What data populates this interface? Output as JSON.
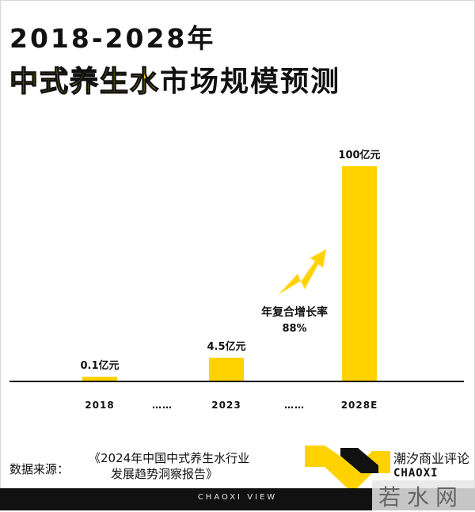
{
  "header": {
    "title_line1": "2018-2028年",
    "title_line2_accent": "中式养生水",
    "title_line2_rest": "市场规模预测"
  },
  "chart_data": {
    "type": "bar",
    "categories": [
      "2018",
      "……",
      "2023",
      "……",
      "2028E"
    ],
    "values": [
      0.1,
      null,
      4.5,
      null,
      100
    ],
    "data_labels": [
      "0.1亿元",
      "",
      "4.5亿元",
      "",
      "100亿元"
    ],
    "title": "2018-2028年中式养生水市场规模预测",
    "xlabel": "",
    "ylabel": "",
    "ylim": [
      0,
      100
    ],
    "grid": false,
    "legend": "none",
    "bar_color": "#ffd200",
    "annotation": {
      "label": "年复合增长率",
      "value": "88%"
    }
  },
  "source": {
    "label": "数据来源：",
    "line1": "《2024年中国中式养生水行业",
    "line2": "发展趋势洞察报告》"
  },
  "brand": {
    "name_cn": "潮汐商业评论",
    "name_en": "CHAOXI",
    "footer_text": "CHAOXI VIEW",
    "watermark": "若水网"
  },
  "colors": {
    "accent": "#ffd200",
    "dark": "#111111"
  }
}
